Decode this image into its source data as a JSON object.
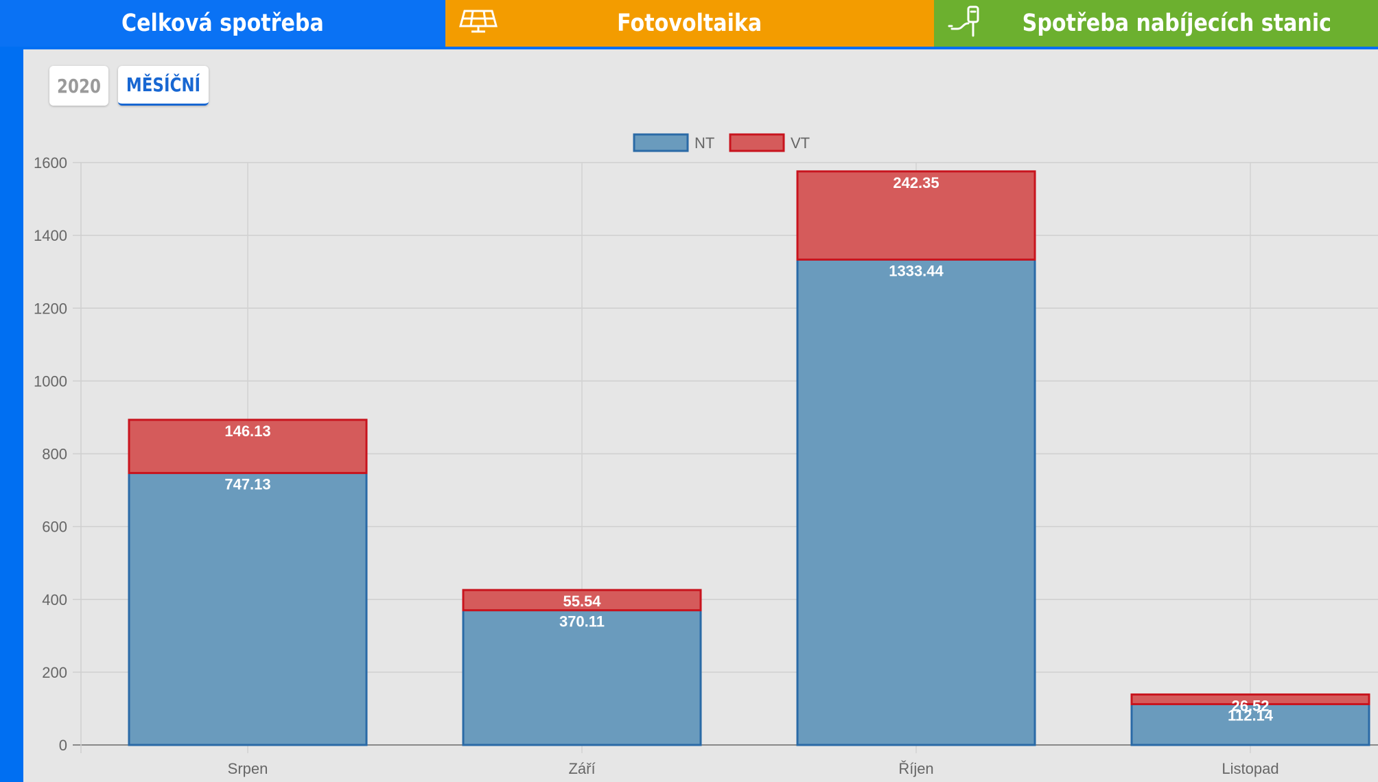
{
  "tabs": [
    {
      "label": "Celková spotřeba",
      "icon": "none"
    },
    {
      "label": "Fotovoltaika",
      "icon": "solar-panel-icon"
    },
    {
      "label": "Spotřeba nabíjecích stanic",
      "icon": "charging-station-icon"
    }
  ],
  "period_buttons": {
    "year": "2020",
    "monthly": "MĚSÍČNÍ",
    "active": "monthly"
  },
  "colors": {
    "nt_fill": "#6a9bbd",
    "nt_border": "#2a6aa6",
    "vt_fill": "#d55b5b",
    "vt_border": "#c8141e"
  },
  "chart_data": {
    "type": "bar",
    "stacked": true,
    "categories": [
      "Srpen",
      "Září",
      "Říjen",
      "Listopad"
    ],
    "series": [
      {
        "name": "NT",
        "values": [
          747.13,
          370.11,
          1333.44,
          112.14
        ]
      },
      {
        "name": "VT",
        "values": [
          146.13,
          55.54,
          242.35,
          26.52
        ]
      }
    ],
    "y_ticks": [
      "0",
      "200",
      "400",
      "600",
      "800",
      "1000",
      "1200",
      "1400",
      "1600"
    ],
    "ylim": [
      0,
      1600
    ],
    "legend_position": "top",
    "grid": true
  }
}
